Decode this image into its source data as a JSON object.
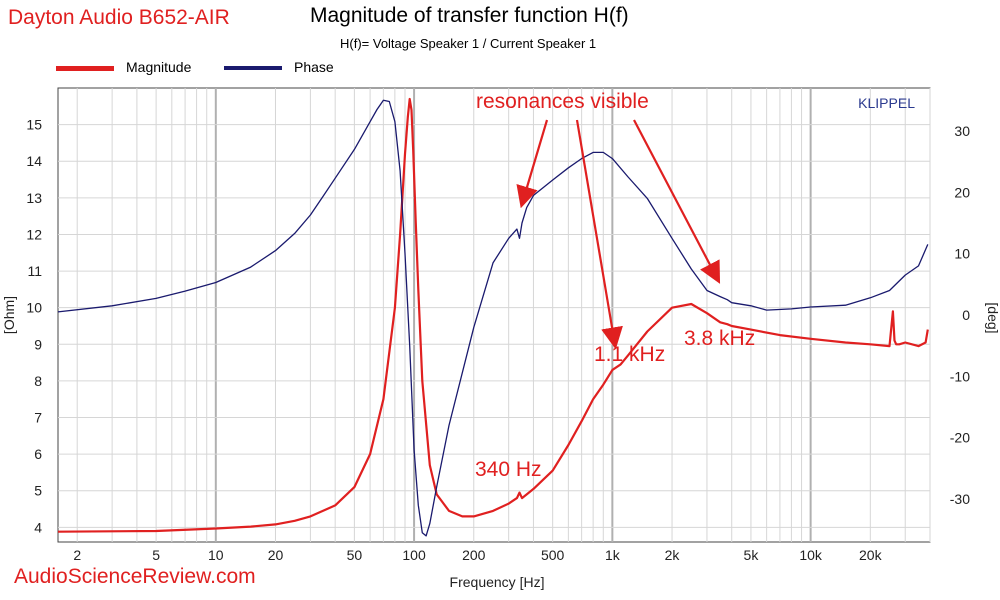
{
  "header": {
    "brand": "Dayton Audio B652-AIR",
    "title": "Magnitude of transfer function H(f)",
    "subtitle": "H(f)= Voltage Speaker 1 / Current Speaker 1"
  },
  "footer": "AudioScienceReview.com",
  "colors": {
    "magnitude": "#e02020",
    "phase": "#1a1a6e",
    "accent": "#e02020",
    "grid": "#c8c8c8"
  },
  "chart_data": {
    "type": "line",
    "watermark": "KLIPPEL",
    "xlabel": "Frequency [Hz]",
    "ylabel_left": "[Ohm]",
    "ylabel_right": "[deg]",
    "x_scale": "log",
    "xlim": [
      1.6,
      40000
    ],
    "ylim_left": [
      3.6,
      16.0
    ],
    "ylim_right": [
      -37,
      37
    ],
    "grid": true,
    "legend_position": "top-left",
    "x_ticks": [
      {
        "value": 2,
        "label": "2"
      },
      {
        "value": 5,
        "label": "5"
      },
      {
        "value": 10,
        "label": "10"
      },
      {
        "value": 20,
        "label": "20"
      },
      {
        "value": 50,
        "label": "50"
      },
      {
        "value": 100,
        "label": "100"
      },
      {
        "value": 200,
        "label": "200"
      },
      {
        "value": 500,
        "label": "500"
      },
      {
        "value": 1000,
        "label": "1k"
      },
      {
        "value": 2000,
        "label": "2k"
      },
      {
        "value": 5000,
        "label": "5k"
      },
      {
        "value": 10000,
        "label": "10k"
      },
      {
        "value": 20000,
        "label": "20k"
      }
    ],
    "y_left_ticks": [
      4,
      5,
      6,
      7,
      8,
      9,
      10,
      11,
      12,
      13,
      14,
      15
    ],
    "y_right_ticks": [
      -30,
      -20,
      -10,
      0,
      10,
      20,
      30
    ],
    "series": [
      {
        "name": "Magnitude",
        "axis": "left",
        "color": "#e02020",
        "x": [
          1.6,
          5,
          10,
          15,
          20,
          25,
          30,
          40,
          50,
          60,
          70,
          80,
          85,
          90,
          93,
          95,
          97,
          99,
          102,
          105,
          110,
          120,
          130,
          150,
          175,
          200,
          250,
          300,
          330,
          340,
          350,
          370,
          400,
          500,
          600,
          700,
          800,
          900,
          1000,
          1100,
          1200,
          1500,
          2000,
          2500,
          3000,
          3500,
          3800,
          4000,
          5000,
          7000,
          10000,
          15000,
          20000,
          25000,
          26000,
          26500,
          27000,
          28000,
          30000,
          35000,
          38000,
          39000
        ],
        "y": [
          3.88,
          3.9,
          3.97,
          4.02,
          4.08,
          4.18,
          4.3,
          4.6,
          5.1,
          6.0,
          7.5,
          10.0,
          12.0,
          14.2,
          15.2,
          15.7,
          15.4,
          14.3,
          12.3,
          10.5,
          8.0,
          5.7,
          4.9,
          4.45,
          4.3,
          4.3,
          4.45,
          4.65,
          4.8,
          4.95,
          4.8,
          4.9,
          5.05,
          5.55,
          6.25,
          6.9,
          7.5,
          7.9,
          8.3,
          8.45,
          8.7,
          9.35,
          10.0,
          10.1,
          9.85,
          9.6,
          9.55,
          9.5,
          9.4,
          9.25,
          9.15,
          9.05,
          9.0,
          8.95,
          9.9,
          9.1,
          9.0,
          9.0,
          9.05,
          8.95,
          9.05,
          9.4
        ]
      },
      {
        "name": "Phase",
        "axis": "right",
        "color": "#1a1a6e",
        "x": [
          1.6,
          3,
          5,
          7,
          10,
          15,
          20,
          25,
          30,
          35,
          40,
          50,
          60,
          65,
          70,
          75,
          80,
          85,
          90,
          95,
          100,
          105,
          110,
          115,
          120,
          130,
          150,
          200,
          250,
          300,
          330,
          340,
          350,
          370,
          400,
          500,
          600,
          700,
          800,
          900,
          1000,
          1200,
          1500,
          2000,
          2500,
          3000,
          3500,
          3800,
          4000,
          5000,
          6000,
          8000,
          10000,
          15000,
          20000,
          25000,
          30000,
          35000,
          39000
        ],
        "y": [
          0.5,
          1.5,
          2.7,
          3.9,
          5.3,
          7.8,
          10.5,
          13.3,
          16.3,
          19.5,
          22.3,
          27.0,
          31.5,
          33.5,
          35.0,
          34.8,
          31.5,
          23.5,
          10.0,
          -5.0,
          -22.0,
          -31.0,
          -35.5,
          -36.0,
          -34.0,
          -28.0,
          -18.0,
          -2.0,
          8.5,
          12.5,
          14.0,
          12.5,
          15.0,
          17.5,
          19.5,
          22.0,
          24.0,
          25.5,
          26.5,
          26.5,
          25.5,
          22.5,
          19.0,
          12.5,
          7.5,
          4.0,
          3.0,
          2.5,
          2.0,
          1.5,
          0.8,
          1.0,
          1.3,
          1.6,
          2.8,
          4.0,
          6.5,
          8.0,
          11.5
        ]
      }
    ],
    "annotations": [
      {
        "text": "resonances visible"
      },
      {
        "text": "340 Hz"
      },
      {
        "text": "1.1 kHz"
      },
      {
        "text": "3.8 kHz"
      }
    ]
  }
}
